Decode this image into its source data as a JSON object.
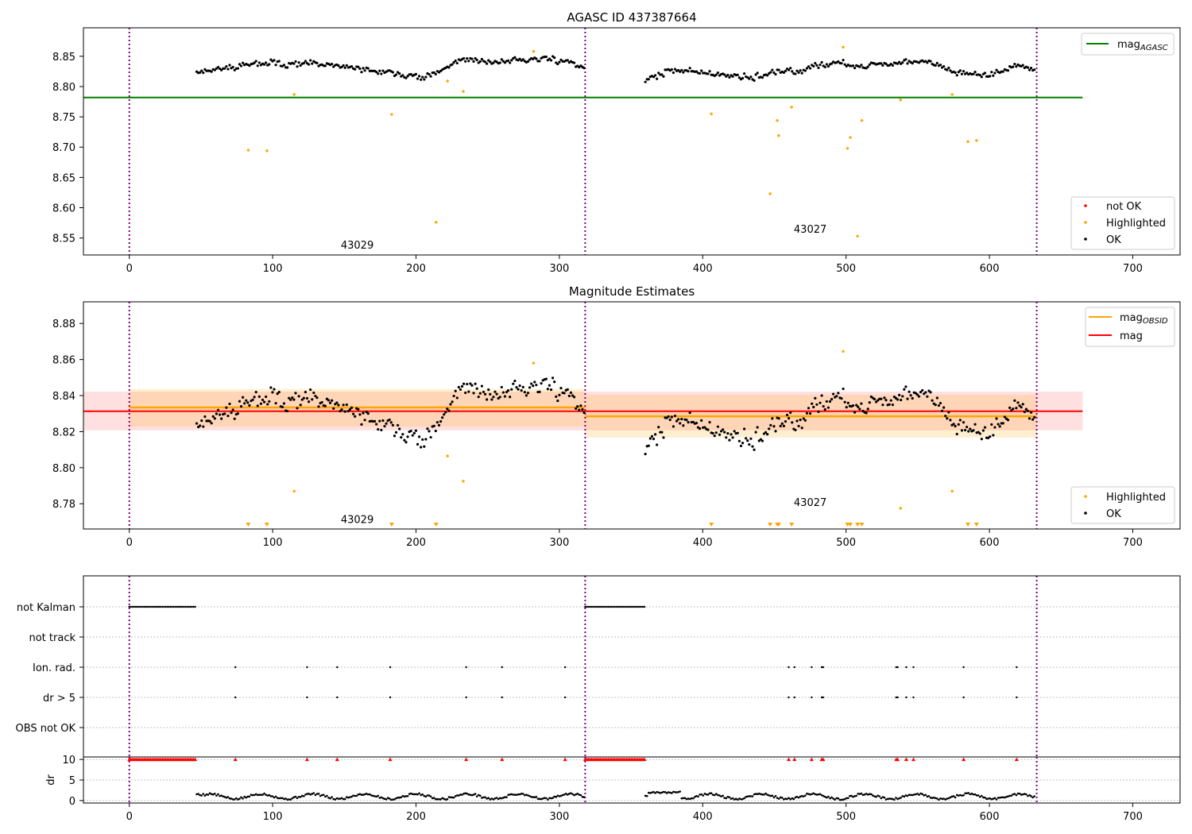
{
  "chart_data": [
    {
      "type": "scatter",
      "title": "AGASC ID 437387664",
      "xlim": [
        -32,
        733
      ],
      "ylim": [
        8.522,
        8.897
      ],
      "xticks": [
        0,
        100,
        200,
        300,
        400,
        500,
        600,
        700
      ],
      "yticks": [
        8.55,
        8.6,
        8.65,
        8.7,
        8.75,
        8.8,
        8.85
      ],
      "ytick_labels": [
        "8.55",
        "8.60",
        "8.65",
        "8.70",
        "8.75",
        "8.80",
        "8.85"
      ],
      "obs_boundaries": [
        0,
        318,
        633
      ],
      "obsid_labels": [
        {
          "text": "43029",
          "x": 159,
          "y": 8.539
        },
        {
          "text": "43027",
          "x": 475,
          "y": 8.565
        }
      ],
      "mag_agasc": 8.782,
      "mag_agasc_range": [
        -32,
        665
      ],
      "legend_top": {
        "label": "mag",
        "sub": "AGASC",
        "color": "#008000",
        "position": "upper right"
      },
      "legend_bottom": {
        "position": "lower right",
        "items": [
          {
            "label": "not OK",
            "color": "#ff0000"
          },
          {
            "label": "Highlighted",
            "color": "#ffa500"
          },
          {
            "label": "OK",
            "color": "#000000"
          }
        ]
      },
      "highlighted": [
        [
          83,
          8.695
        ],
        [
          96,
          8.694
        ],
        [
          115,
          8.787
        ],
        [
          183,
          8.754
        ],
        [
          214,
          8.576
        ],
        [
          222,
          8.809
        ],
        [
          233,
          8.792
        ],
        [
          282,
          8.858
        ],
        [
          406,
          8.755
        ],
        [
          447,
          8.623
        ],
        [
          452,
          8.744
        ],
        [
          453,
          8.719
        ],
        [
          462,
          8.766
        ],
        [
          498,
          8.865
        ],
        [
          501,
          8.698
        ],
        [
          503,
          8.716
        ],
        [
          508,
          8.553
        ],
        [
          511,
          8.744
        ],
        [
          538,
          8.778
        ],
        [
          574,
          8.787
        ],
        [
          585,
          8.709
        ],
        [
          591,
          8.711
        ]
      ],
      "ok_segments": [
        {
          "x0": 47,
          "x1": 318,
          "step": 1.15,
          "seed": 11,
          "noise": 0.0075,
          "trend": [
            [
              47,
              8.826
            ],
            [
              70,
              8.832
            ],
            [
              100,
              8.838
            ],
            [
              130,
              8.836
            ],
            [
              160,
              8.83
            ],
            [
              185,
              8.822
            ],
            [
              200,
              8.816
            ],
            [
              215,
              8.822
            ],
            [
              230,
              8.845
            ],
            [
              260,
              8.84
            ],
            [
              285,
              8.846
            ],
            [
              305,
              8.843
            ],
            [
              318,
              8.829
            ]
          ]
        },
        {
          "x0": 360,
          "x1": 632,
          "step": 1.15,
          "seed": 37,
          "noise": 0.0075,
          "trend": [
            [
              360,
              8.813
            ],
            [
              380,
              8.828
            ],
            [
              400,
              8.823
            ],
            [
              420,
              8.815
            ],
            [
              445,
              8.82
            ],
            [
              465,
              8.825
            ],
            [
              485,
              8.837
            ],
            [
              510,
              8.835
            ],
            [
              540,
              8.84
            ],
            [
              560,
              8.843
            ],
            [
              580,
              8.822
            ],
            [
              600,
              8.818
            ],
            [
              620,
              8.835
            ],
            [
              632,
              8.826
            ]
          ]
        }
      ]
    },
    {
      "type": "scatter",
      "title": "Magnitude Estimates",
      "xlim": [
        -32,
        733
      ],
      "ylim": [
        8.766,
        8.892
      ],
      "xticks": [
        0,
        100,
        200,
        300,
        400,
        500,
        600,
        700
      ],
      "yticks": [
        8.78,
        8.8,
        8.82,
        8.84,
        8.86,
        8.88
      ],
      "ytick_labels": [
        "8.78",
        "8.80",
        "8.82",
        "8.84",
        "8.86",
        "8.88"
      ],
      "obs_boundaries": [
        0,
        318,
        633
      ],
      "obsid_labels": [
        {
          "text": "43029",
          "x": 159,
          "y": 8.7715
        },
        {
          "text": "43027",
          "x": 475,
          "y": 8.781
        }
      ],
      "mag": {
        "value": 8.8313,
        "band": [
          8.8207,
          8.8422
        ],
        "x_range": [
          -32,
          665
        ]
      },
      "mag_obsid": [
        {
          "value": 8.8334,
          "band": [
            8.8228,
            8.8436
          ],
          "x_range": [
            0,
            318
          ]
        },
        {
          "value": 8.8285,
          "band": [
            8.8167,
            8.8404
          ],
          "x_range": [
            318,
            633
          ]
        }
      ],
      "legend_top": {
        "position": "upper right",
        "items": [
          {
            "label": "mag",
            "sub": "OBSID",
            "color": "#ffa500"
          },
          {
            "label": "mag",
            "sub": "",
            "color": "#ff0000"
          }
        ]
      },
      "legend_bottom": {
        "position": "lower right",
        "items": [
          {
            "label": "Highlighted",
            "color": "#ffa500"
          },
          {
            "label": "OK",
            "color": "#000000"
          }
        ]
      },
      "highlighted": [
        [
          115,
          8.787
        ],
        [
          222,
          8.8065
        ],
        [
          233,
          8.7925
        ],
        [
          282,
          8.858
        ],
        [
          498,
          8.8645
        ],
        [
          538,
          8.7775
        ],
        [
          574,
          8.787
        ]
      ],
      "out_of_range_x": [
        83,
        96,
        183,
        214,
        406,
        447,
        452,
        453,
        462,
        501,
        503,
        508,
        511,
        585,
        591
      ],
      "ok_segments": "same as AGASC plot OK points"
    },
    {
      "type": "scatter",
      "title": "",
      "xlim": [
        -32,
        733
      ],
      "xticks": [
        0,
        100,
        200,
        300,
        400,
        500,
        600,
        700
      ],
      "obs_boundaries": [
        0,
        318,
        633
      ],
      "flag_rows": [
        "not Kalman",
        "not track",
        "Ion. rad.",
        "dr > 5",
        "OBS not OK"
      ],
      "not_kalman_ranges": [
        [
          0,
          46
        ],
        [
          318,
          360
        ]
      ],
      "ion_rad_x": [
        74,
        124,
        145,
        182,
        235,
        260,
        304,
        460,
        464,
        476,
        483,
        484,
        535,
        536,
        542,
        547,
        582,
        619
      ],
      "dr_gt5_x": [
        74,
        124,
        145,
        182,
        235,
        260,
        304,
        460,
        464,
        476,
        483,
        484,
        535,
        536,
        542,
        547,
        582,
        619
      ],
      "dr": {
        "ylabel": "dr",
        "yticks": [
          0,
          5,
          10
        ],
        "ytick_labels": [
          "0",
          "5",
          "10"
        ],
        "ylim": [
          -0.6,
          10.6
        ],
        "clip": 10,
        "segments": [
          {
            "x0": 47,
            "x1": 318,
            "seed": 5
          },
          {
            "x0": 360,
            "x1": 632,
            "seed": 9
          }
        ]
      }
    }
  ]
}
